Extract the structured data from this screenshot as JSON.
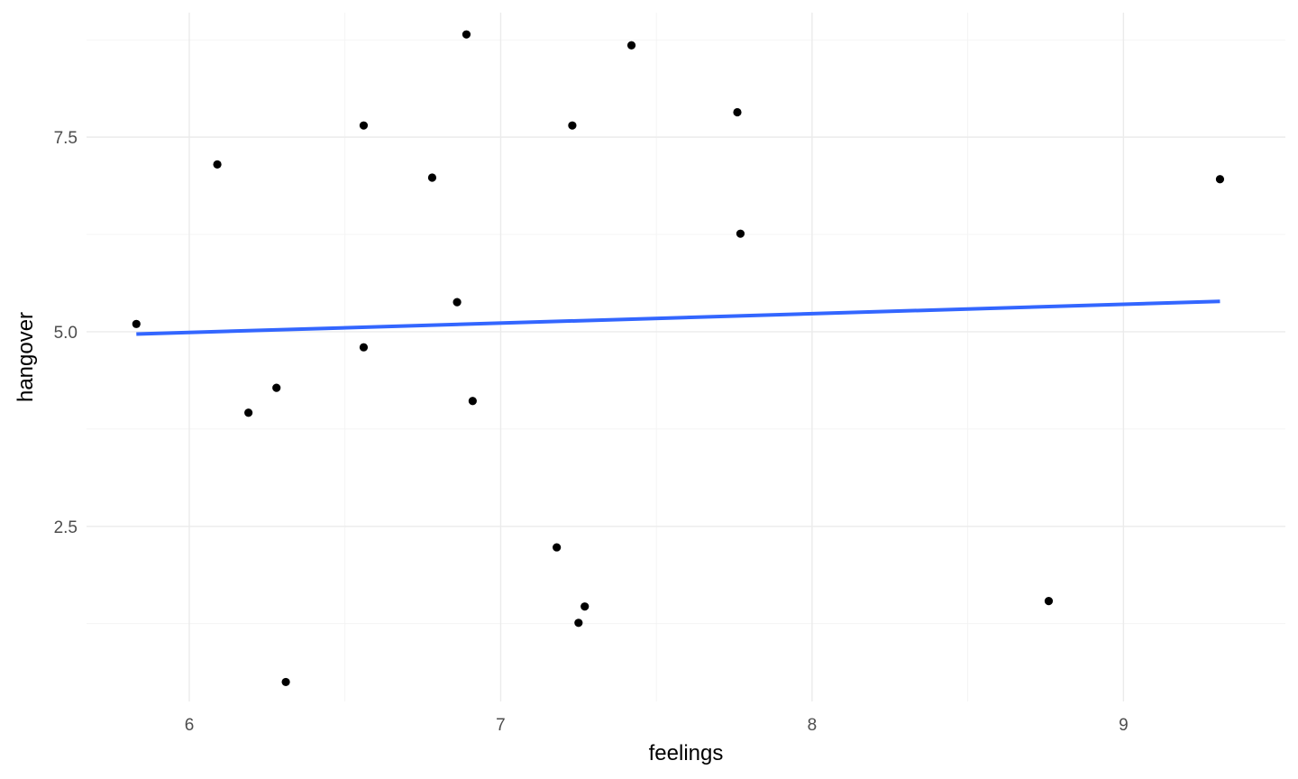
{
  "chart_data": {
    "type": "scatter",
    "title": "",
    "xlabel": "feelings",
    "ylabel": "hangover",
    "xlim": [
      5.67,
      9.52
    ],
    "ylim": [
      0.25,
      9.1
    ],
    "x_ticks": [
      6,
      7,
      8,
      9
    ],
    "x_tick_labels": [
      "6",
      "7",
      "8",
      "9"
    ],
    "x_minor_ticks": [
      6.5,
      7.5,
      8.5
    ],
    "y_ticks": [
      2.5,
      5.0,
      7.5
    ],
    "y_tick_labels": [
      "2.5",
      "5.0",
      "7.5"
    ],
    "y_minor_ticks": [
      1.25,
      3.75,
      6.25,
      8.75
    ],
    "grid": true,
    "point_color": "#000000",
    "fit_color": "#3366ff",
    "series": [
      {
        "points": [
          {
            "x": 5.83,
            "y": 5.1
          },
          {
            "x": 6.09,
            "y": 7.15
          },
          {
            "x": 6.19,
            "y": 3.96
          },
          {
            "x": 6.28,
            "y": 4.28
          },
          {
            "x": 6.31,
            "y": 0.5
          },
          {
            "x": 6.56,
            "y": 7.65
          },
          {
            "x": 6.56,
            "y": 4.8
          },
          {
            "x": 6.78,
            "y": 6.98
          },
          {
            "x": 6.86,
            "y": 5.38
          },
          {
            "x": 6.89,
            "y": 8.82
          },
          {
            "x": 6.91,
            "y": 4.11
          },
          {
            "x": 7.18,
            "y": 2.23
          },
          {
            "x": 7.23,
            "y": 7.65
          },
          {
            "x": 7.25,
            "y": 1.26
          },
          {
            "x": 7.27,
            "y": 1.47
          },
          {
            "x": 7.42,
            "y": 8.68
          },
          {
            "x": 7.76,
            "y": 7.82
          },
          {
            "x": 7.77,
            "y": 6.26
          },
          {
            "x": 8.76,
            "y": 1.54
          },
          {
            "x": 9.31,
            "y": 6.96
          }
        ]
      }
    ],
    "fit_line": {
      "method": "lm",
      "x": [
        5.83,
        9.31
      ],
      "y": [
        4.97,
        5.39
      ]
    }
  }
}
